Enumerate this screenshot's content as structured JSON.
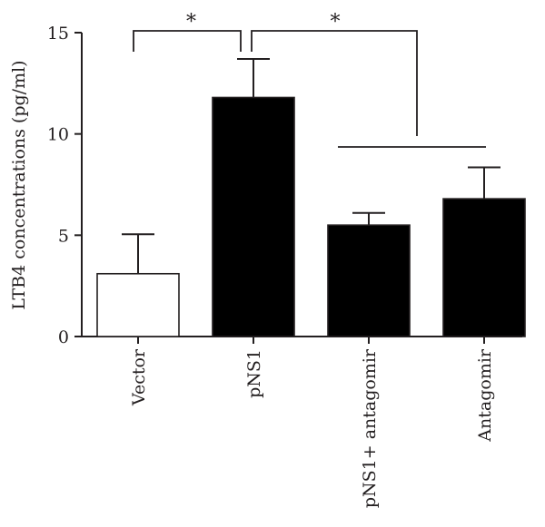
{
  "chart_data": {
    "type": "bar",
    "categories": [
      "Vector",
      "pNS1",
      "pNS1+ antagomir",
      "Antagomir"
    ],
    "values": [
      3.1,
      11.8,
      5.5,
      6.8
    ],
    "errors": [
      1.95,
      1.9,
      0.6,
      1.55
    ],
    "fills": [
      "#ffffff",
      "#000000",
      "#000000",
      "#000000"
    ],
    "title": "",
    "xlabel": "",
    "ylabel": "LTB4 concentrations (pg/ml)",
    "ylim": [
      0,
      15
    ],
    "yticks": [
      0,
      5,
      10,
      15
    ],
    "grid": false,
    "significance": [
      {
        "from": [
          0
        ],
        "to": [
          1
        ],
        "label": "*"
      },
      {
        "from": [
          1
        ],
        "to": [
          2,
          3
        ],
        "label": "*"
      }
    ]
  }
}
